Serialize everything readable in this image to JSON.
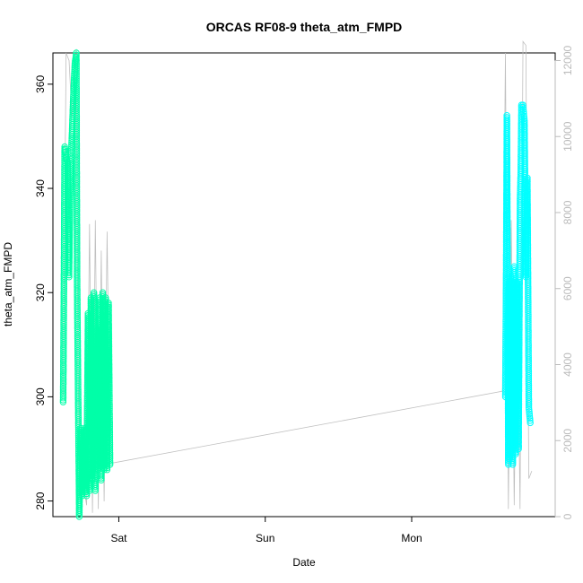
{
  "chart_data": {
    "type": "scatter",
    "title": "ORCAS RF08-9 theta_atm_FMPD",
    "xlabel": "Date",
    "ylabel": "theta_atm_FMPD",
    "x_ticks": [
      "Sat",
      "Sun",
      "Mon"
    ],
    "x_tick_days": [
      1,
      2,
      3
    ],
    "xlim_days": [
      0.55,
      3.98
    ],
    "y_left": {
      "ylim": [
        277,
        366
      ],
      "ticks": [
        280,
        300,
        320,
        340,
        360
      ]
    },
    "y_right": {
      "ylim": [
        0,
        12200
      ],
      "ticks": [
        0,
        2000,
        4000,
        6000,
        8000,
        10000,
        12000
      ],
      "color": "#bbbbbb"
    },
    "grid": false,
    "colors": {
      "flight1": "#00ffa8",
      "flight2": "#00ffff",
      "altitude_line": "#c0c0c0"
    },
    "series": [
      {
        "x_days": [
          0.62,
          0.625,
          0.63,
          0.635,
          0.64,
          0.65,
          0.66,
          0.67,
          0.68,
          0.69,
          0.7,
          0.71,
          0.715,
          0.72,
          0.73,
          0.74,
          0.75,
          0.76,
          0.765,
          0.77,
          0.775,
          0.78,
          0.79,
          0.8,
          0.81,
          0.82,
          0.83,
          0.84,
          0.85,
          0.86,
          0.87,
          0.88,
          0.89,
          0.9,
          0.91,
          0.92,
          0.93,
          0.94
        ],
        "y": [
          299,
          320,
          348,
          347,
          346,
          345,
          323,
          344,
          350,
          358,
          364,
          366,
          323,
          307,
          277,
          294,
          281,
          292,
          283,
          294,
          283,
          281,
          316,
          282,
          319,
          284,
          320,
          282,
          313,
          286,
          319,
          284,
          320,
          286,
          319,
          286,
          318,
          287
        ]
      },
      {
        "x_days": [
          3.64,
          3.645,
          3.65,
          3.655,
          3.66,
          3.665,
          3.67,
          3.68,
          3.69,
          3.7,
          3.71,
          3.72,
          3.73,
          3.74,
          3.745,
          3.75,
          3.76,
          3.77,
          3.775,
          3.78,
          3.79,
          3.8,
          3.81
        ],
        "y": [
          300,
          322,
          354,
          326,
          287,
          322,
          288,
          323,
          287,
          325,
          289,
          322,
          290,
          338,
          343,
          356,
          356,
          353,
          339,
          323,
          342,
          298,
          295
        ]
      },
      {
        "name": "altitude",
        "axis": "right",
        "x_days": [
          0.62,
          0.64,
          0.66,
          0.68,
          0.7,
          0.71,
          0.72,
          0.74,
          0.76,
          0.78,
          0.8,
          0.82,
          0.84,
          0.86,
          0.88,
          0.9,
          0.92,
          0.94,
          3.62,
          3.64,
          3.66,
          3.68,
          3.7,
          3.72,
          3.74,
          3.76,
          3.78,
          3.8,
          3.82
        ],
        "y": [
          3200,
          12200,
          12000,
          10500,
          11500,
          12300,
          4000,
          200,
          800,
          300,
          7700,
          100,
          7800,
          200,
          7000,
          400,
          7500,
          1400,
          3300,
          12200,
          200,
          7800,
          300,
          6500,
          200,
          12500,
          12400,
          1000,
          1200
        ]
      }
    ]
  }
}
